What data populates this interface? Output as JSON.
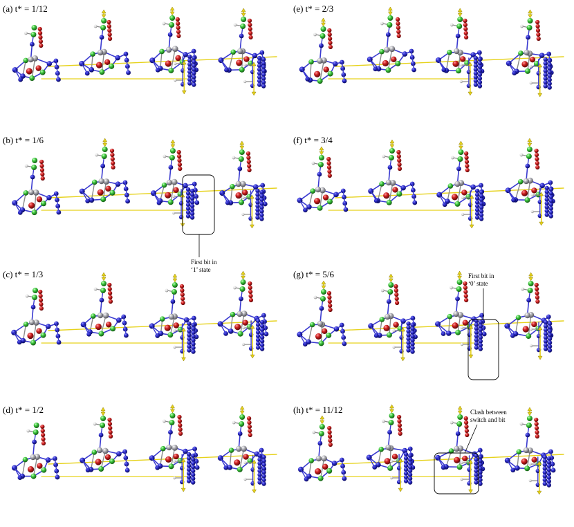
{
  "figure": {
    "panels": [
      {
        "id": "a",
        "label": "(a) t* = 1/12",
        "col": 0,
        "row": 0
      },
      {
        "id": "b",
        "label": "(b) t* =  1/6",
        "col": 0,
        "row": 1
      },
      {
        "id": "c",
        "label": "(c) t* = 1/3",
        "col": 0,
        "row": 2
      },
      {
        "id": "d",
        "label": "(d) t* = 1/2",
        "col": 0,
        "row": 3
      },
      {
        "id": "e",
        "label": "(e) t* = 2/3",
        "col": 1,
        "row": 0
      },
      {
        "id": "f",
        "label": "(f) t* = 3/4",
        "col": 1,
        "row": 1
      },
      {
        "id": "g",
        "label": "(g) t* = 5/6",
        "col": 1,
        "row": 2
      },
      {
        "id": "h",
        "label": "(h) t* = 11/12",
        "col": 1,
        "row": 3
      }
    ],
    "annotations": {
      "b": {
        "line1": "First bit in",
        "line2": "‘1’ state"
      },
      "g": {
        "line1": "First bit in",
        "line2": "‘0’ state"
      },
      "h": {
        "line1": "Clash between",
        "line2": "switch and bit"
      }
    },
    "colors": {
      "blue_bead": "#2424b8",
      "green_bead": "#3ac43a",
      "red_bead": "#cc1f1f",
      "grey_bead": "#9a9aa2",
      "white_bead": "#d8d8d8",
      "yellow_arrow": "#e6d21c",
      "bond": "#3a3ad0"
    }
  }
}
